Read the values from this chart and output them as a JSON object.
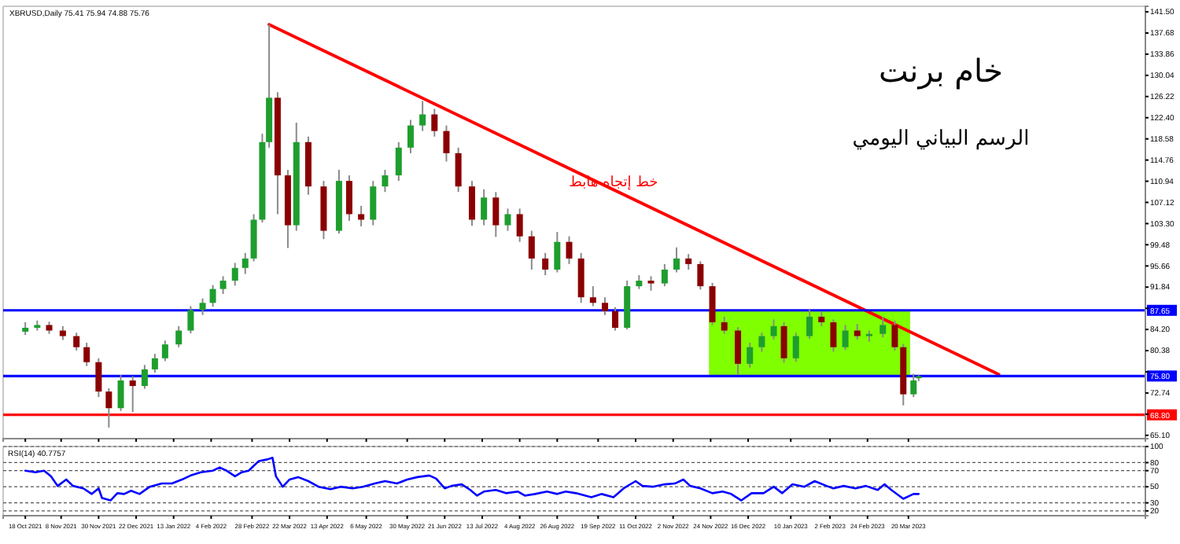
{
  "chart_data": [
    {
      "type": "candlestick",
      "title": "خام برنت",
      "subtitle": "الرسم البياني اليومي",
      "annotations": [
        "XBRUSD,Daily 75.41 75.94 74.88 75.76",
        {
          "text": "خط إتجاه هابط",
          "x": "2022-09-28",
          "y": 110
        }
      ],
      "x": [
        "2021-10-18",
        "2021-10-25",
        "2021-11-01",
        "2021-11-09",
        "2021-11-17",
        "2021-11-23",
        "2021-11-30",
        "2021-12-06",
        "2021-12-13",
        "2021-12-20",
        "2021-12-27",
        "2022-01-02",
        "2022-01-08",
        "2022-01-16",
        "2022-01-23",
        "2022-01-30",
        "2022-02-05",
        "2022-02-11",
        "2022-02-18",
        "2022-02-24",
        "2022-03-01",
        "2022-03-06",
        "2022-03-10",
        "2022-03-15",
        "2022-03-21",
        "2022-03-26",
        "2022-04-02",
        "2022-04-11",
        "2022-04-20",
        "2022-04-26",
        "2022-05-03",
        "2022-05-10",
        "2022-05-17",
        "2022-05-25",
        "2022-06-01",
        "2022-06-08",
        "2022-06-15",
        "2022-06-22",
        "2022-06-29",
        "2022-07-07",
        "2022-07-14",
        "2022-07-21",
        "2022-07-28",
        "2022-08-04",
        "2022-08-11",
        "2022-08-19",
        "2022-08-26",
        "2022-09-02",
        "2022-09-09",
        "2022-09-16",
        "2022-09-23",
        "2022-09-29",
        "2022-10-06",
        "2022-10-13",
        "2022-10-20",
        "2022-10-28",
        "2022-11-04",
        "2022-11-11",
        "2022-11-18",
        "2022-11-25",
        "2022-12-02",
        "2022-12-10",
        "2022-12-17",
        "2022-12-24",
        "2022-12-31",
        "2023-01-06",
        "2023-01-13",
        "2023-01-21",
        "2023-01-28",
        "2023-02-04",
        "2023-02-11",
        "2023-02-18",
        "2023-02-25",
        "2023-03-05",
        "2023-03-12",
        "2023-03-17",
        "2023-03-23",
        "2023-03-26"
      ],
      "ohlc": [
        [
          83.8,
          85.5,
          83.2,
          84.5
        ],
        [
          84.5,
          85.8,
          84,
          85
        ],
        [
          85,
          85.6,
          83.4,
          84
        ],
        [
          84,
          84.8,
          82.3,
          83
        ],
        [
          83,
          83.6,
          80.4,
          81
        ],
        [
          81,
          81.8,
          77.6,
          78.3
        ],
        [
          78.3,
          79,
          72,
          73
        ],
        [
          73,
          73.6,
          66.5,
          70
        ],
        [
          70,
          76,
          69.5,
          75
        ],
        [
          75,
          75.8,
          69.3,
          74
        ],
        [
          74,
          77.8,
          73.5,
          77
        ],
        [
          77,
          79.8,
          76.4,
          79
        ],
        [
          79,
          82.2,
          78.5,
          81.5
        ],
        [
          81.5,
          84.8,
          81,
          84
        ],
        [
          84,
          88.4,
          83.5,
          87.7
        ],
        [
          87.7,
          89.8,
          86.8,
          89
        ],
        [
          89,
          92.2,
          88.3,
          91.5
        ],
        [
          91.5,
          93.8,
          90.6,
          93
        ],
        [
          93,
          96.2,
          92.1,
          95.3
        ],
        [
          95.3,
          98,
          94.2,
          97
        ],
        [
          97,
          105,
          96.5,
          104
        ],
        [
          104,
          119.5,
          103.5,
          118
        ],
        [
          118,
          139.2,
          117,
          126
        ],
        [
          126,
          127,
          105,
          112
        ],
        [
          112,
          113,
          98.9,
          103
        ],
        [
          103,
          121.5,
          102,
          118
        ],
        [
          118,
          119,
          108.5,
          110
        ],
        [
          110,
          111,
          100.5,
          102
        ],
        [
          102,
          113,
          101.5,
          111
        ],
        [
          111,
          112,
          103.8,
          105
        ],
        [
          105,
          106.5,
          102.8,
          104
        ],
        [
          104,
          111,
          103,
          110
        ],
        [
          110,
          113,
          109,
          112
        ],
        [
          112,
          118,
          111,
          117
        ],
        [
          117,
          122,
          116,
          121
        ],
        [
          121,
          125.4,
          120,
          123
        ],
        [
          123,
          124,
          119,
          120
        ],
        [
          120,
          121,
          114.5,
          116
        ],
        [
          116,
          117,
          109,
          110
        ],
        [
          110,
          111,
          102.9,
          104
        ],
        [
          104,
          109.5,
          103,
          108
        ],
        [
          108,
          109,
          100.9,
          103
        ],
        [
          103,
          106,
          102,
          105
        ],
        [
          105,
          106,
          100,
          101
        ],
        [
          101,
          102,
          95,
          97
        ],
        [
          97,
          98,
          94,
          95
        ],
        [
          95,
          101.8,
          94.5,
          100
        ],
        [
          100,
          101,
          96,
          97
        ],
        [
          97,
          98,
          89,
          90
        ],
        [
          90,
          92,
          88.4,
          89
        ],
        [
          89,
          90,
          86.8,
          87.5
        ],
        [
          87.5,
          88.2,
          84,
          84.5
        ],
        [
          84.5,
          93,
          84.2,
          92
        ],
        [
          92,
          94,
          91.5,
          93
        ],
        [
          93,
          93.8,
          91.2,
          92.5
        ],
        [
          92.5,
          96,
          92,
          95
        ],
        [
          95,
          99,
          94.5,
          97
        ],
        [
          97,
          97.8,
          95,
          96
        ],
        [
          96,
          96.5,
          91.4,
          92
        ],
        [
          92,
          92.6,
          85,
          85.5
        ],
        [
          85.5,
          86.5,
          83.4,
          84
        ],
        [
          84,
          84.6,
          76,
          78
        ],
        [
          78,
          81.8,
          77.3,
          81
        ],
        [
          81,
          83.6,
          80.2,
          83
        ],
        [
          83,
          86,
          82.4,
          84.8
        ],
        [
          84.8,
          85.5,
          78.2,
          79
        ],
        [
          79,
          83.6,
          78.4,
          83
        ],
        [
          83,
          87.8,
          82.5,
          86.5
        ],
        [
          86.5,
          87.5,
          84.8,
          85.5
        ],
        [
          85.5,
          86,
          80.2,
          81
        ],
        [
          81,
          85,
          80.5,
          84
        ],
        [
          84,
          85.2,
          82.4,
          83
        ],
        [
          83,
          84,
          82,
          83.4
        ],
        [
          83.4,
          86.5,
          82.8,
          85
        ],
        [
          85,
          85.8,
          80.4,
          81
        ],
        [
          81,
          81.6,
          70.5,
          72.5
        ],
        [
          72.5,
          76.2,
          72,
          75
        ],
        [
          75.41,
          75.94,
          74.88,
          75.76
        ]
      ],
      "series": [
        {
          "type": "line",
          "x": [
            "2022-03-10",
            "2023-05-12"
          ],
          "values": [
            139.2,
            76.1
          ],
          "color": "#ff0000"
        }
      ],
      "ref_lines": [
        {
          "axis": "y",
          "value": 87.65,
          "color": "#0000ff",
          "label": "87.65"
        },
        {
          "axis": "y",
          "value": 75.8,
          "color": "#0000ff",
          "label": "75.80"
        },
        {
          "axis": "y",
          "value": 68.8,
          "color": "#ff0000",
          "label": "68.80"
        }
      ],
      "bands": [
        {
          "axis": "x",
          "from": "2022-11-23",
          "to": "2023-03-21",
          "color": "#7fff00"
        }
      ],
      "xlim": [
        "2021-10-05",
        "2023-08-06"
      ],
      "xticks": [
        {
          "value": "2021-10-18",
          "label": null
        },
        {
          "value": "2021-11-08",
          "label": null
        },
        {
          "value": "2021-11-30",
          "label": null
        },
        {
          "value": "2021-12-22",
          "label": null
        },
        {
          "value": "2022-01-13",
          "label": null
        },
        {
          "value": "2022-02-04",
          "label": null
        },
        {
          "value": "2022-02-28",
          "label": null
        },
        {
          "value": "2022-03-22",
          "label": null
        },
        {
          "value": "2022-04-13",
          "label": null
        },
        {
          "value": "2022-05-06",
          "label": null
        },
        {
          "value": "2022-05-30",
          "label": null
        },
        {
          "value": "2022-06-21",
          "label": null
        },
        {
          "value": "2022-07-13",
          "label": null
        },
        {
          "value": "2022-08-04",
          "label": null
        },
        {
          "value": "2022-08-26",
          "label": null
        },
        {
          "value": "2022-09-19",
          "label": null
        },
        {
          "value": "2022-10-11",
          "label": null
        },
        {
          "value": "2022-11-02",
          "label": null
        },
        {
          "value": "2022-11-24",
          "label": null
        },
        {
          "value": "2022-12-16",
          "label": null
        },
        {
          "value": "2023-01-10",
          "label": null
        },
        {
          "value": "2023-02-02",
          "label": null
        },
        {
          "value": "2023-02-24",
          "label": null
        },
        {
          "value": "2023-03-20",
          "label": null
        }
      ],
      "ylim": [
        64.5,
        142.5
      ],
      "yticks": [
        {
          "value": 65.1,
          "label": "65.10"
        },
        {
          "value": 68.92,
          "label": null
        },
        {
          "value": 72.74,
          "label": "72.74"
        },
        {
          "value": 76.56,
          "label": null
        },
        {
          "value": 80.38,
          "label": "80.38"
        },
        {
          "value": 84.2,
          "label": "84.20"
        },
        {
          "value": 88.02,
          "label": null
        },
        {
          "value": 91.84,
          "label": "91.84"
        },
        {
          "value": 95.66,
          "label": "95.66"
        },
        {
          "value": 99.48,
          "label": "99.48"
        },
        {
          "value": 103.3,
          "label": "103.30"
        },
        {
          "value": 107.12,
          "label": "107.12"
        },
        {
          "value": 110.94,
          "label": "110.94"
        },
        {
          "value": 114.76,
          "label": "114.76"
        },
        {
          "value": 118.58,
          "label": "118.58"
        },
        {
          "value": 122.4,
          "label": "122.40"
        },
        {
          "value": 126.22,
          "label": "126.22"
        },
        {
          "value": 130.04,
          "label": "130.04"
        },
        {
          "value": 133.86,
          "label": "133.86"
        },
        {
          "value": 137.68,
          "label": "137.68"
        },
        {
          "value": 141.5,
          "label": "141.50"
        }
      ],
      "tick_labels": "y"
    },
    {
      "type": "line",
      "title": "RSI(14) 40.7757",
      "x": [
        "2021-10-18",
        "2021-10-24",
        "2021-10-29",
        "2021-11-02",
        "2021-11-06",
        "2021-11-11",
        "2021-11-15",
        "2021-11-21",
        "2021-11-26",
        "2021-11-30",
        "2021-12-02",
        "2021-12-07",
        "2021-12-11",
        "2021-12-15",
        "2021-12-19",
        "2021-12-24",
        "2021-12-30",
        "2022-01-06",
        "2022-01-12",
        "2022-01-19",
        "2022-01-23",
        "2022-01-29",
        "2022-02-05",
        "2022-02-09",
        "2022-02-13",
        "2022-02-18",
        "2022-02-22",
        "2022-02-26",
        "2022-03-04",
        "2022-03-09",
        "2022-03-12",
        "2022-03-14",
        "2022-03-18",
        "2022-03-22",
        "2022-03-27",
        "2022-04-02",
        "2022-04-08",
        "2022-04-15",
        "2022-04-21",
        "2022-04-28",
        "2022-05-04",
        "2022-05-11",
        "2022-05-17",
        "2022-05-24",
        "2022-05-30",
        "2022-06-05",
        "2022-06-12",
        "2022-06-16",
        "2022-06-21",
        "2022-06-25",
        "2022-07-01",
        "2022-07-06",
        "2022-07-10",
        "2022-07-14",
        "2022-07-21",
        "2022-07-27",
        "2022-08-03",
        "2022-08-07",
        "2022-08-13",
        "2022-08-20",
        "2022-08-26",
        "2022-08-31",
        "2022-09-06",
        "2022-09-15",
        "2022-09-21",
        "2022-09-28",
        "2022-10-04",
        "2022-10-11",
        "2022-10-15",
        "2022-10-21",
        "2022-10-28",
        "2022-11-03",
        "2022-11-08",
        "2022-11-12",
        "2022-11-18",
        "2022-11-25",
        "2022-12-01",
        "2022-12-06",
        "2022-12-12",
        "2022-12-18",
        "2022-12-25",
        "2022-12-31",
        "2023-01-05",
        "2023-01-11",
        "2023-01-18",
        "2023-01-24",
        "2023-01-31",
        "2023-02-04",
        "2023-02-10",
        "2023-02-17",
        "2023-02-23",
        "2023-03-02",
        "2023-03-06",
        "2023-03-10",
        "2023-03-17",
        "2023-03-21",
        "2023-03-23",
        "2023-03-26"
      ],
      "series": [
        {
          "color": "#0000ff",
          "values": [
            70,
            68,
            70,
            63,
            51,
            59,
            51,
            48,
            41,
            48,
            36,
            33,
            42,
            41,
            45,
            41,
            50,
            54,
            54,
            60,
            64,
            68,
            70,
            74,
            70,
            63,
            68,
            70,
            82,
            84,
            86,
            63,
            50,
            59,
            62,
            57,
            50,
            47,
            50,
            48,
            50,
            54,
            57,
            54,
            59,
            62,
            64,
            60,
            48,
            51,
            53,
            46,
            39,
            44,
            46,
            42,
            44,
            39,
            41,
            44,
            41,
            44,
            42,
            37,
            41,
            37,
            48,
            57,
            51,
            50,
            53,
            54,
            59,
            51,
            48,
            42,
            44,
            41,
            33,
            42,
            42,
            50,
            42,
            53,
            50,
            57,
            51,
            48,
            51,
            48,
            51,
            46,
            53,
            46,
            35,
            39,
            41,
            41
          ]
        }
      ],
      "xlim": [
        "2021-10-05",
        "2023-08-06"
      ],
      "xticks": [
        {
          "value": "2021-10-18",
          "label": "18 Oct 2021"
        },
        {
          "value": "2021-11-08",
          "label": "8 Nov 2021"
        },
        {
          "value": "2021-11-30",
          "label": "30 Nov 2021"
        },
        {
          "value": "2021-12-22",
          "label": "22 Dec 2021"
        },
        {
          "value": "2022-01-13",
          "label": "13 Jan 2022"
        },
        {
          "value": "2022-02-04",
          "label": "4 Feb 2022"
        },
        {
          "value": "2022-02-28",
          "label": "28 Feb 2022"
        },
        {
          "value": "2022-03-22",
          "label": "22 Mar 2022"
        },
        {
          "value": "2022-04-13",
          "label": "13 Apr 2022"
        },
        {
          "value": "2022-05-06",
          "label": "6 May 2022"
        },
        {
          "value": "2022-05-30",
          "label": "30 May 2022"
        },
        {
          "value": "2022-06-21",
          "label": "21 Jun 2022"
        },
        {
          "value": "2022-07-13",
          "label": "13 Jul 2022"
        },
        {
          "value": "2022-08-04",
          "label": "4 Aug 2022"
        },
        {
          "value": "2022-08-26",
          "label": "26 Aug 2022"
        },
        {
          "value": "2022-09-19",
          "label": "19 Sep 2022"
        },
        {
          "value": "2022-10-11",
          "label": "11 Oct 2022"
        },
        {
          "value": "2022-11-02",
          "label": "2 Nov 2022"
        },
        {
          "value": "2022-11-24",
          "label": "24 Nov 2022"
        },
        {
          "value": "2022-12-16",
          "label": "16 Dec 2022"
        },
        {
          "value": "2023-01-10",
          "label": "10 Jan 2023"
        },
        {
          "value": "2023-02-02",
          "label": "2 Feb 2023"
        },
        {
          "value": "2023-02-24",
          "label": "24 Feb 2023"
        },
        {
          "value": "2023-03-20",
          "label": "20 Mar 2023"
        }
      ],
      "ylim": [
        14,
        100
      ],
      "yticks": [
        20,
        30,
        50,
        70,
        80,
        100
      ],
      "grid": "y"
    }
  ]
}
